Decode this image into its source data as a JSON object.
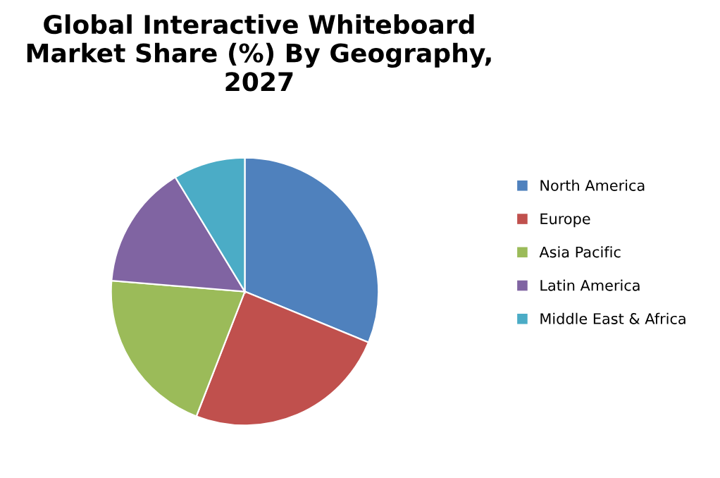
{
  "chart_data": {
    "type": "pie",
    "title": "Global Interactive Whiteboard Market Share (%) By Geography, 2027",
    "categories": [
      "North America",
      "Europe",
      "Asia Pacific",
      "Latin America",
      "Middle East & Africa"
    ],
    "values": [
      31.2,
      24.7,
      20.4,
      15,
      8.7
    ],
    "colors": [
      "#4f81bd",
      "#c0504d",
      "#9bbb59",
      "#8064a2",
      "#4bacc6"
    ],
    "legend": "right"
  }
}
